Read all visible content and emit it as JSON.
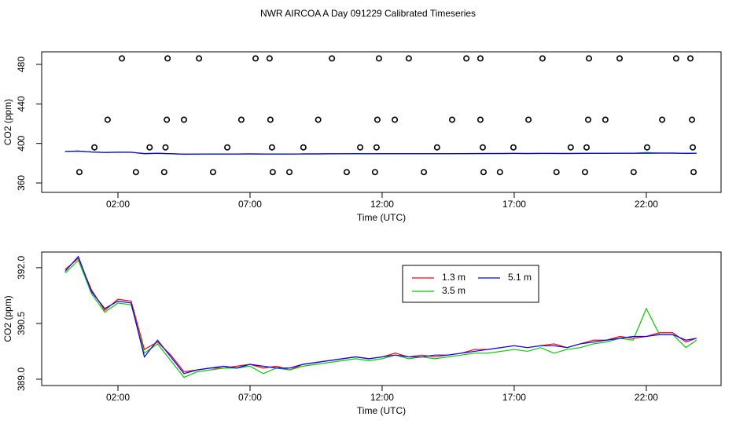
{
  "chart_data": [
    {
      "type": "scatter",
      "title": "NWR AIRCOA A  Day 091229  Calibrated Timeseries",
      "x_label": "Time (UTC)",
      "y_label": "CO2 (ppm)",
      "xlim": [
        -0.887,
        24.83
      ],
      "ylim": [
        350.5,
        492.7
      ],
      "xticks": [
        {
          "value": 2,
          "label": "02:00"
        },
        {
          "value": 7,
          "label": "07:00"
        },
        {
          "value": 12,
          "label": "12:00"
        },
        {
          "value": 17,
          "label": "17:00"
        },
        {
          "value": 22,
          "label": "22:00"
        }
      ],
      "yticks": [
        360,
        400,
        440,
        480
      ],
      "color": "#000000",
      "points": {
        "x": [
          2.15,
          3.88,
          5.07,
          7.21,
          7.74,
          10.1,
          11.88,
          13.01,
          15.19,
          15.72,
          18.07,
          19.83,
          20.99,
          23.13,
          23.67,
          1.61,
          3.85,
          4.5,
          6.67,
          7.77,
          9.58,
          11.82,
          12.48,
          14.65,
          15.72,
          17.54,
          19.8,
          20.45,
          22.6,
          23.73,
          1.11,
          3.2,
          3.8,
          6.14,
          7.83,
          9.02,
          11.17,
          11.79,
          14.08,
          15.81,
          16.97,
          19.14,
          19.74,
          22.03,
          23.76,
          0.54,
          2.68,
          3.75,
          5.6,
          7.86,
          8.49,
          10.66,
          11.73,
          13.58,
          15.84,
          16.46,
          18.6,
          19.68,
          21.52,
          23.79
        ],
        "values": [
          486,
          486,
          486,
          486,
          486,
          486,
          486,
          486,
          486,
          486,
          486,
          486,
          486,
          486,
          486,
          424,
          424,
          424,
          424,
          424,
          424,
          424,
          424,
          424,
          424,
          424,
          424,
          424,
          424,
          424,
          396,
          396,
          396,
          396,
          396,
          396,
          396,
          396,
          396,
          396,
          396,
          396,
          396,
          396,
          396,
          371,
          371,
          371,
          371,
          371,
          371,
          371,
          371,
          371,
          371,
          371,
          371,
          371,
          371,
          371
        ]
      }
    },
    {
      "type": "line",
      "x_label": "Time (UTC)",
      "y_label": "CO2 (ppm)",
      "xlim": [
        -0.887,
        24.83
      ],
      "ylim": [
        388.83,
        392.42
      ],
      "xticks": [
        {
          "value": 2,
          "label": "02:00"
        },
        {
          "value": 7,
          "label": "07:00"
        },
        {
          "value": 12,
          "label": "12:00"
        },
        {
          "value": 17,
          "label": "17:00"
        },
        {
          "value": 22,
          "label": "22:00"
        }
      ],
      "yticks": [
        {
          "value": 389,
          "label": "389.0"
        },
        {
          "value": 390.5,
          "label": "390.5"
        },
        {
          "value": 392,
          "label": "392.0"
        }
      ],
      "x": [
        0,
        0.5,
        1,
        1.5,
        2,
        2.5,
        3,
        3.5,
        4,
        4.5,
        5,
        5.5,
        6,
        6.5,
        7,
        7.5,
        8,
        8.5,
        9,
        9.5,
        10,
        10.5,
        11,
        11.5,
        12,
        12.5,
        13,
        13.5,
        14,
        14.5,
        15,
        15.5,
        16,
        16.5,
        17,
        17.5,
        18,
        18.5,
        19,
        19.5,
        20,
        20.5,
        21,
        21.5,
        22,
        22.5,
        23,
        23.5,
        23.9
      ],
      "series": [
        {
          "name": "1.3 m",
          "color": "#ff0000",
          "values": [
            391.95,
            392.25,
            391.4,
            390.85,
            391.15,
            391.1,
            389.8,
            390.0,
            389.65,
            389.2,
            389.25,
            389.3,
            389.3,
            389.35,
            389.4,
            389.3,
            389.35,
            389.25,
            389.4,
            389.45,
            389.5,
            389.55,
            389.6,
            389.55,
            389.6,
            389.7,
            389.6,
            389.65,
            389.6,
            389.65,
            389.7,
            389.8,
            389.8,
            389.85,
            389.9,
            389.85,
            389.9,
            389.95,
            389.85,
            389.95,
            390.05,
            390.05,
            390.15,
            390.1,
            390.15,
            390.25,
            390.25,
            390.0,
            390.1
          ]
        },
        {
          "name": "3.5 m",
          "color": "#00cd00",
          "values": [
            391.85,
            392.2,
            391.3,
            390.8,
            391.05,
            391.0,
            389.7,
            389.95,
            389.5,
            389.05,
            389.2,
            389.25,
            389.3,
            389.3,
            389.35,
            389.15,
            389.3,
            389.25,
            389.35,
            389.4,
            389.45,
            389.5,
            389.55,
            389.5,
            389.55,
            389.65,
            389.55,
            389.6,
            389.55,
            389.6,
            389.65,
            389.7,
            389.7,
            389.75,
            389.8,
            389.75,
            389.85,
            389.7,
            389.8,
            389.85,
            389.95,
            390.0,
            390.1,
            390.05,
            390.9,
            390.2,
            390.2,
            389.85,
            390.05
          ]
        },
        {
          "name": "5.1 m",
          "color": "#0000ff",
          "values": [
            391.9,
            392.3,
            391.35,
            390.9,
            391.1,
            391.05,
            389.6,
            390.05,
            389.6,
            389.15,
            389.25,
            389.3,
            389.35,
            389.3,
            389.4,
            389.35,
            389.3,
            389.3,
            389.4,
            389.45,
            389.5,
            389.55,
            389.6,
            389.55,
            389.6,
            389.65,
            389.6,
            389.6,
            389.65,
            389.65,
            389.7,
            389.75,
            389.8,
            389.85,
            389.9,
            389.85,
            389.9,
            389.9,
            389.85,
            389.95,
            390.0,
            390.05,
            390.1,
            390.15,
            390.15,
            390.2,
            390.2,
            390.05,
            390.1
          ]
        }
      ]
    }
  ]
}
